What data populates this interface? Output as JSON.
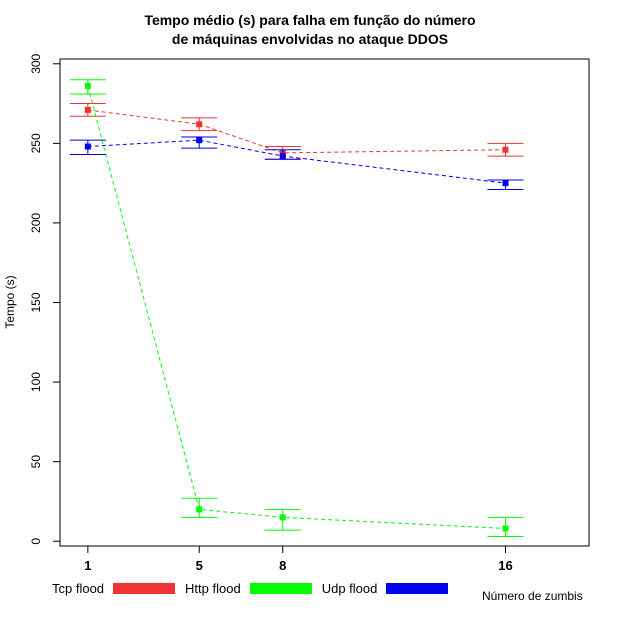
{
  "chart_data": {
    "type": "line",
    "title_line1": "Tempo médio (s) para falha em função do número",
    "title_line2": "de máquinas envolvidas no ataque DDOS",
    "xlabel": "Número de zumbis",
    "ylabel": "Tempo (s)",
    "x": [
      1,
      5,
      8,
      16
    ],
    "x_ticks": [
      "1",
      "5",
      "8",
      "16"
    ],
    "xlim": [
      0,
      19
    ],
    "ylim": [
      -3,
      303
    ],
    "y_ticks": [
      "0",
      "50",
      "100",
      "150",
      "200",
      "250",
      "300"
    ],
    "y_tick_values": [
      0,
      50,
      100,
      150,
      200,
      250,
      300
    ],
    "legend_position": "bottom",
    "series": [
      {
        "name": "Tcp flood",
        "color": "#ee3333",
        "values": [
          271,
          262,
          244,
          246
        ],
        "err_low": [
          267,
          258,
          240,
          242
        ],
        "err_high": [
          275,
          266,
          248,
          250
        ]
      },
      {
        "name": "Http flood",
        "color": "#00ff00",
        "values": [
          286,
          20,
          15,
          8
        ],
        "err_low": [
          281,
          15,
          7,
          3
        ],
        "err_high": [
          290,
          27,
          20,
          15
        ]
      },
      {
        "name": "Udp flood",
        "color": "#0000ee",
        "values": [
          248,
          252,
          242,
          225
        ],
        "err_low": [
          243,
          247,
          240,
          221
        ],
        "err_high": [
          252,
          254,
          246,
          227
        ]
      }
    ]
  }
}
